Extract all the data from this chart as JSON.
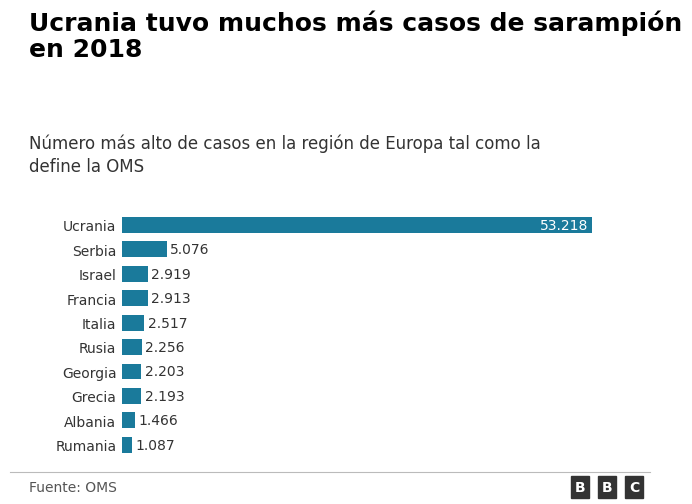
{
  "title": "Ucrania tuvo muchos más casos de sarampión\nen 2018",
  "subtitle": "Número más alto de casos en la región de Europa tal como la\ndefine la OMS",
  "source": "Fuente: OMS",
  "bbc_logo": "BBC",
  "categories": [
    "Ucrania",
    "Serbia",
    "Israel",
    "Francia",
    "Italia",
    "Rusia",
    "Georgia",
    "Grecia",
    "Albania",
    "Rumania"
  ],
  "values": [
    53218,
    5076,
    2919,
    2913,
    2517,
    2256,
    2203,
    2193,
    1466,
    1087
  ],
  "labels": [
    "53.218",
    "5.076",
    "2.919",
    "2.913",
    "2.517",
    "2.256",
    "2.203",
    "2.193",
    "1.466",
    "1.087"
  ],
  "bar_color": "#1a7a9b",
  "background_color": "#ffffff",
  "title_fontsize": 18,
  "subtitle_fontsize": 12,
  "label_fontsize": 10,
  "tick_fontsize": 10,
  "source_fontsize": 10,
  "xlim": [
    0,
    58000
  ]
}
